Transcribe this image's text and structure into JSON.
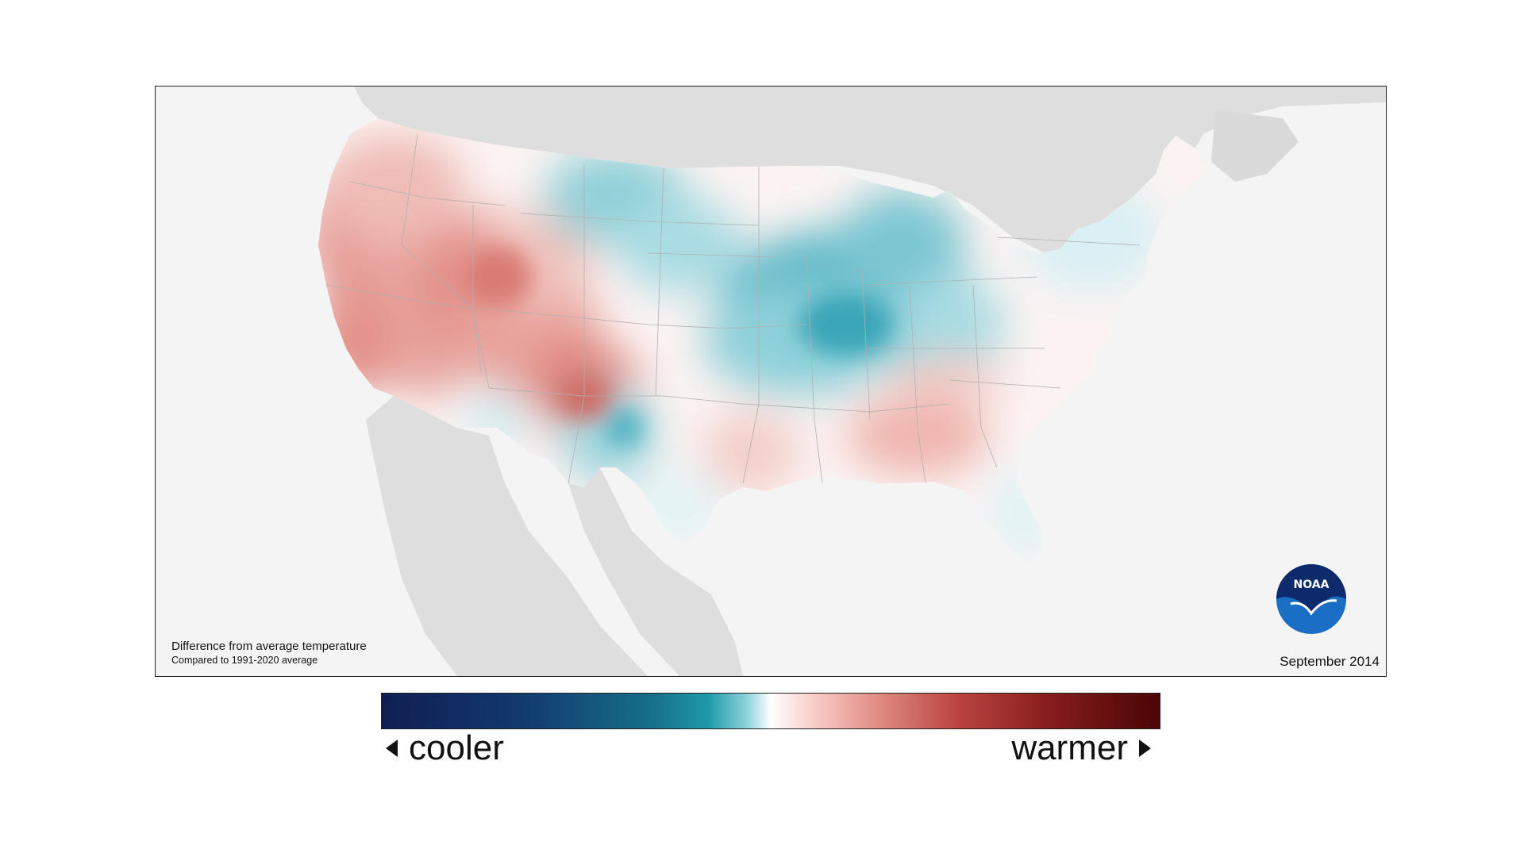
{
  "map": {
    "caption_title": "Difference from average temperature",
    "caption_subtitle": "Compared to 1991-2020 average",
    "date": "September 2014",
    "logo_text": "NOAA"
  },
  "legend": {
    "low_label": "cooler",
    "high_label": "warmer"
  },
  "colors": {
    "coldest": "#0f1e52",
    "cool": "#1f9aa8",
    "neutral": "#ffffff",
    "warm": "#e08a82",
    "warmest": "#4a0505",
    "land_outside": "#dedede",
    "ocean": "#f4f4f4",
    "noaa_blue": "#1a6fc4",
    "noaa_navy": "#0d2a6b"
  }
}
